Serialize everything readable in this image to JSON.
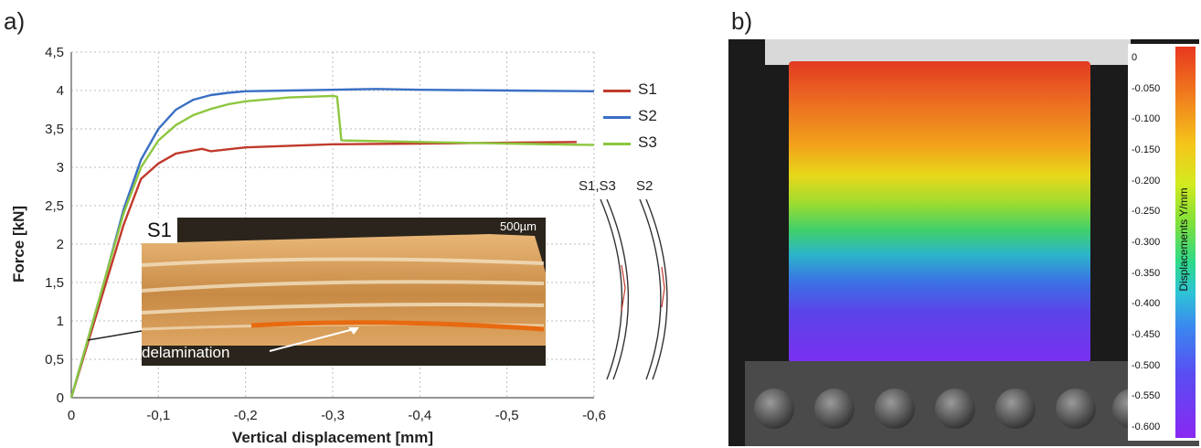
{
  "panel_a_label": "a)",
  "panel_b_label": "b)",
  "chart_data": {
    "type": "line",
    "xlabel": "Vertical displacement [mm]",
    "ylabel": "Force [kN]",
    "xlim": [
      0,
      -0.6
    ],
    "ylim": [
      0,
      4.5
    ],
    "x_ticks": [
      "0",
      "-0,1",
      "-0,2",
      "-0,3",
      "-0,4",
      "-0,5",
      "-0,6"
    ],
    "y_ticks": [
      "0",
      "0,5",
      "1",
      "1,5",
      "2",
      "2,5",
      "3",
      "3,5",
      "4",
      "4,5"
    ],
    "grid": true,
    "legend_position": "right",
    "series": [
      {
        "name": "S1",
        "color": "#c0392b",
        "x": [
          0,
          -0.02,
          -0.04,
          -0.06,
          -0.08,
          -0.1,
          -0.12,
          -0.14,
          -0.15,
          -0.16,
          -0.2,
          -0.3,
          -0.4,
          -0.5,
          -0.58
        ],
        "y": [
          0,
          0.75,
          1.5,
          2.25,
          2.85,
          3.05,
          3.18,
          3.22,
          3.24,
          3.21,
          3.26,
          3.3,
          3.31,
          3.32,
          3.33
        ]
      },
      {
        "name": "S2",
        "color": "#3a6fc4",
        "x": [
          0,
          -0.02,
          -0.04,
          -0.06,
          -0.08,
          -0.1,
          -0.12,
          -0.14,
          -0.16,
          -0.18,
          -0.2,
          -0.25,
          -0.3,
          -0.35,
          -0.4,
          -0.5,
          -0.6
        ],
        "y": [
          0,
          0.8,
          1.6,
          2.45,
          3.1,
          3.5,
          3.75,
          3.88,
          3.94,
          3.97,
          3.99,
          4.0,
          4.01,
          4.02,
          4.01,
          4.0,
          3.99
        ]
      },
      {
        "name": "S3",
        "color": "#8dc63f",
        "x": [
          0,
          -0.02,
          -0.04,
          -0.06,
          -0.08,
          -0.1,
          -0.12,
          -0.14,
          -0.16,
          -0.18,
          -0.2,
          -0.25,
          -0.3,
          -0.305,
          -0.31,
          -0.4,
          -0.5,
          -0.6
        ],
        "y": [
          0,
          0.8,
          1.6,
          2.4,
          3.0,
          3.35,
          3.55,
          3.68,
          3.76,
          3.82,
          3.86,
          3.91,
          3.93,
          3.92,
          3.35,
          3.33,
          3.31,
          3.29
        ]
      }
    ]
  },
  "inset": {
    "label": "S1",
    "scale": "500µm",
    "annotation": "delamination"
  },
  "curve_labels": {
    "left": "S1,S3",
    "right": "S2"
  },
  "colorbar": {
    "title": "Displacements Y/mm",
    "ticks": [
      "0",
      "-0.050",
      "-0.100",
      "-0.150",
      "-0.200",
      "-0.250",
      "-0.300",
      "-0.350",
      "-0.400",
      "-0.450",
      "-0.500",
      "-0.550",
      "-0.600"
    ]
  }
}
